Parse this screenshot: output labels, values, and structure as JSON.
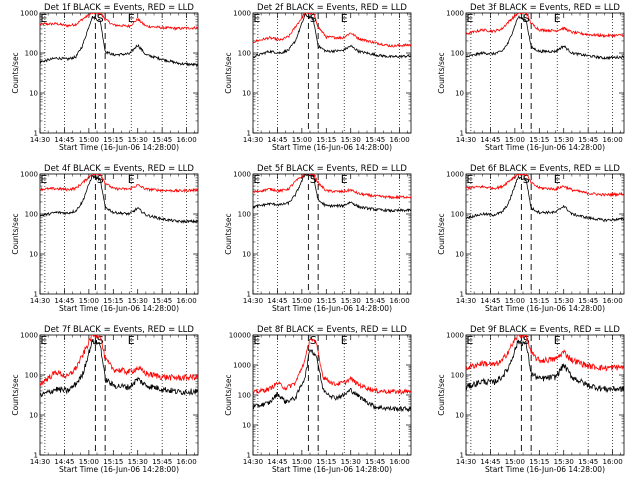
{
  "chart_data": {
    "type": "line",
    "time_ticks": [
      "14:30",
      "14:45",
      "15:00",
      "15:15",
      "15:30",
      "15:45",
      "16:00"
    ],
    "time_tick_minutes": [
      870,
      885,
      900,
      915,
      930,
      945,
      960
    ],
    "x_range_minutes": [
      870,
      967
    ],
    "y_ticks": [
      1,
      10,
      100,
      1000
    ],
    "y_ticks_large": [
      1,
      10,
      100,
      1000,
      10000
    ],
    "xlabel": "Start Time (16-Jun-06 14:28:00)",
    "ylabel": "Counts/sec",
    "y_scale": "log",
    "colors": {
      "events": "#000000",
      "lld": "#ff0000"
    },
    "markers": {
      "E": "E",
      "S": "S"
    },
    "marker_lines": {
      "dotted_minutes": [
        873,
        885,
        926,
        945,
        960
      ],
      "dashed_minutes": [
        904,
        910
      ]
    },
    "panels": [
      {
        "title": "Det 1f BLACK = Events, RED = LLD",
        "ylim": [
          1,
          1000
        ],
        "events": [
          [
            870,
            60
          ],
          [
            880,
            75
          ],
          [
            887,
            70
          ],
          [
            892,
            80
          ],
          [
            896,
            150
          ],
          [
            902,
            800
          ],
          [
            907,
            650
          ],
          [
            910,
            110
          ],
          [
            915,
            90
          ],
          [
            925,
            95
          ],
          [
            930,
            160
          ],
          [
            935,
            90
          ],
          [
            945,
            70
          ],
          [
            955,
            55
          ],
          [
            967,
            50
          ]
        ],
        "lld": [
          [
            870,
            520
          ],
          [
            880,
            540
          ],
          [
            887,
            480
          ],
          [
            892,
            520
          ],
          [
            896,
            700
          ],
          [
            902,
            1000
          ],
          [
            907,
            1000
          ],
          [
            910,
            700
          ],
          [
            915,
            500
          ],
          [
            925,
            470
          ],
          [
            930,
            700
          ],
          [
            935,
            470
          ],
          [
            945,
            430
          ],
          [
            955,
            410
          ],
          [
            967,
            430
          ]
        ]
      },
      {
        "title": "Det 2f BLACK = Events, RED = LLD",
        "ylim": [
          1,
          1000
        ],
        "events": [
          [
            870,
            80
          ],
          [
            880,
            110
          ],
          [
            887,
            100
          ],
          [
            892,
            120
          ],
          [
            896,
            200
          ],
          [
            902,
            900
          ],
          [
            907,
            700
          ],
          [
            910,
            150
          ],
          [
            915,
            110
          ],
          [
            925,
            115
          ],
          [
            930,
            150
          ],
          [
            935,
            110
          ],
          [
            945,
            90
          ],
          [
            955,
            80
          ],
          [
            967,
            85
          ]
        ],
        "lld": [
          [
            870,
            190
          ],
          [
            880,
            240
          ],
          [
            887,
            210
          ],
          [
            892,
            260
          ],
          [
            896,
            450
          ],
          [
            902,
            1000
          ],
          [
            907,
            1000
          ],
          [
            910,
            450
          ],
          [
            915,
            250
          ],
          [
            925,
            240
          ],
          [
            930,
            320
          ],
          [
            935,
            230
          ],
          [
            945,
            180
          ],
          [
            955,
            150
          ],
          [
            967,
            160
          ]
        ]
      },
      {
        "title": "Det 3f BLACK = Events, RED = LLD",
        "ylim": [
          1,
          1000
        ],
        "events": [
          [
            870,
            80
          ],
          [
            880,
            100
          ],
          [
            887,
            95
          ],
          [
            892,
            110
          ],
          [
            896,
            180
          ],
          [
            902,
            800
          ],
          [
            907,
            650
          ],
          [
            910,
            140
          ],
          [
            915,
            110
          ],
          [
            925,
            110
          ],
          [
            930,
            150
          ],
          [
            935,
            100
          ],
          [
            945,
            85
          ],
          [
            955,
            75
          ],
          [
            967,
            80
          ]
        ],
        "lld": [
          [
            870,
            300
          ],
          [
            880,
            380
          ],
          [
            887,
            350
          ],
          [
            892,
            400
          ],
          [
            896,
            600
          ],
          [
            902,
            1000
          ],
          [
            907,
            1000
          ],
          [
            910,
            550
          ],
          [
            915,
            380
          ],
          [
            925,
            360
          ],
          [
            930,
            420
          ],
          [
            935,
            330
          ],
          [
            945,
            290
          ],
          [
            955,
            270
          ],
          [
            967,
            280
          ]
        ]
      },
      {
        "title": "Det 4f BLACK = Events, RED = LLD",
        "ylim": [
          1,
          1000
        ],
        "events": [
          [
            870,
            90
          ],
          [
            880,
            110
          ],
          [
            887,
            105
          ],
          [
            892,
            120
          ],
          [
            896,
            200
          ],
          [
            902,
            900
          ],
          [
            907,
            700
          ],
          [
            910,
            150
          ],
          [
            915,
            110
          ],
          [
            925,
            100
          ],
          [
            930,
            140
          ],
          [
            935,
            95
          ],
          [
            945,
            75
          ],
          [
            955,
            65
          ],
          [
            967,
            65
          ]
        ],
        "lld": [
          [
            870,
            420
          ],
          [
            880,
            430
          ],
          [
            887,
            410
          ],
          [
            892,
            440
          ],
          [
            896,
            600
          ],
          [
            902,
            1000
          ],
          [
            907,
            1000
          ],
          [
            910,
            600
          ],
          [
            915,
            430
          ],
          [
            925,
            420
          ],
          [
            930,
            530
          ],
          [
            935,
            420
          ],
          [
            945,
            390
          ],
          [
            955,
            380
          ],
          [
            967,
            400
          ]
        ]
      },
      {
        "title": "Det 5f BLACK = Events, RED = LLD",
        "ylim": [
          1,
          1000
        ],
        "events": [
          [
            870,
            150
          ],
          [
            880,
            180
          ],
          [
            887,
            170
          ],
          [
            892,
            190
          ],
          [
            896,
            300
          ],
          [
            902,
            1000
          ],
          [
            907,
            900
          ],
          [
            910,
            220
          ],
          [
            915,
            160
          ],
          [
            925,
            160
          ],
          [
            930,
            200
          ],
          [
            935,
            150
          ],
          [
            945,
            130
          ],
          [
            955,
            120
          ],
          [
            967,
            125
          ]
        ],
        "lld": [
          [
            870,
            350
          ],
          [
            880,
            420
          ],
          [
            887,
            380
          ],
          [
            892,
            430
          ],
          [
            896,
            650
          ],
          [
            902,
            1000
          ],
          [
            907,
            1000
          ],
          [
            910,
            600
          ],
          [
            915,
            380
          ],
          [
            925,
            360
          ],
          [
            930,
            400
          ],
          [
            935,
            320
          ],
          [
            945,
            280
          ],
          [
            955,
            260
          ],
          [
            967,
            270
          ]
        ]
      },
      {
        "title": "Det 6f BLACK = Events, RED = LLD",
        "ylim": [
          1,
          1000
        ],
        "events": [
          [
            870,
            80
          ],
          [
            880,
            100
          ],
          [
            887,
            95
          ],
          [
            892,
            110
          ],
          [
            896,
            180
          ],
          [
            902,
            850
          ],
          [
            907,
            700
          ],
          [
            910,
            140
          ],
          [
            915,
            110
          ],
          [
            925,
            110
          ],
          [
            930,
            160
          ],
          [
            935,
            100
          ],
          [
            945,
            80
          ],
          [
            955,
            70
          ],
          [
            967,
            75
          ]
        ],
        "lld": [
          [
            870,
            450
          ],
          [
            880,
            480
          ],
          [
            887,
            440
          ],
          [
            892,
            480
          ],
          [
            896,
            650
          ],
          [
            902,
            1000
          ],
          [
            907,
            1000
          ],
          [
            910,
            600
          ],
          [
            915,
            450
          ],
          [
            925,
            420
          ],
          [
            930,
            500
          ],
          [
            935,
            400
          ],
          [
            945,
            330
          ],
          [
            955,
            300
          ],
          [
            967,
            320
          ]
        ]
      },
      {
        "title": "Det 7f BLACK = Events, RED = LLD",
        "ylim": [
          1,
          1000
        ],
        "events": [
          [
            870,
            30
          ],
          [
            880,
            45
          ],
          [
            887,
            40
          ],
          [
            892,
            60
          ],
          [
            896,
            100
          ],
          [
            902,
            700
          ],
          [
            907,
            600
          ],
          [
            910,
            80
          ],
          [
            915,
            55
          ],
          [
            925,
            50
          ],
          [
            930,
            80
          ],
          [
            935,
            55
          ],
          [
            945,
            45
          ],
          [
            955,
            38
          ],
          [
            967,
            40
          ]
        ],
        "lld": [
          [
            870,
            60
          ],
          [
            880,
            120
          ],
          [
            887,
            90
          ],
          [
            892,
            150
          ],
          [
            896,
            300
          ],
          [
            902,
            1000
          ],
          [
            907,
            1000
          ],
          [
            910,
            250
          ],
          [
            915,
            140
          ],
          [
            925,
            120
          ],
          [
            930,
            150
          ],
          [
            935,
            110
          ],
          [
            945,
            90
          ],
          [
            955,
            85
          ],
          [
            967,
            90
          ]
        ]
      },
      {
        "title": "Det 8f BLACK = Events, RED = LLD",
        "ylim": [
          1,
          10000
        ],
        "events": [
          [
            870,
            40
          ],
          [
            880,
            55
          ],
          [
            885,
            110
          ],
          [
            890,
            60
          ],
          [
            896,
            80
          ],
          [
            902,
            400
          ],
          [
            905,
            3500
          ],
          [
            909,
            2000
          ],
          [
            913,
            150
          ],
          [
            920,
            80
          ],
          [
            926,
            100
          ],
          [
            930,
            150
          ],
          [
            935,
            90
          ],
          [
            945,
            40
          ],
          [
            955,
            35
          ],
          [
            967,
            35
          ]
        ],
        "lld": [
          [
            870,
            120
          ],
          [
            880,
            160
          ],
          [
            885,
            250
          ],
          [
            890,
            170
          ],
          [
            896,
            250
          ],
          [
            902,
            1500
          ],
          [
            905,
            8000
          ],
          [
            909,
            5000
          ],
          [
            913,
            400
          ],
          [
            920,
            230
          ],
          [
            926,
            260
          ],
          [
            930,
            350
          ],
          [
            935,
            220
          ],
          [
            945,
            140
          ],
          [
            955,
            130
          ],
          [
            967,
            130
          ]
        ]
      },
      {
        "title": "Det 9f BLACK = Events, RED = LLD",
        "ylim": [
          1,
          1000
        ],
        "events": [
          [
            870,
            50
          ],
          [
            880,
            70
          ],
          [
            887,
            65
          ],
          [
            892,
            90
          ],
          [
            896,
            150
          ],
          [
            902,
            700
          ],
          [
            907,
            600
          ],
          [
            910,
            110
          ],
          [
            915,
            80
          ],
          [
            925,
            90
          ],
          [
            930,
            180
          ],
          [
            935,
            90
          ],
          [
            945,
            55
          ],
          [
            955,
            45
          ],
          [
            967,
            45
          ]
        ],
        "lld": [
          [
            870,
            150
          ],
          [
            880,
            200
          ],
          [
            887,
            180
          ],
          [
            892,
            220
          ],
          [
            896,
            400
          ],
          [
            902,
            1000
          ],
          [
            907,
            1000
          ],
          [
            910,
            350
          ],
          [
            915,
            230
          ],
          [
            925,
            250
          ],
          [
            930,
            380
          ],
          [
            935,
            240
          ],
          [
            945,
            170
          ],
          [
            955,
            150
          ],
          [
            967,
            160
          ]
        ]
      }
    ]
  }
}
